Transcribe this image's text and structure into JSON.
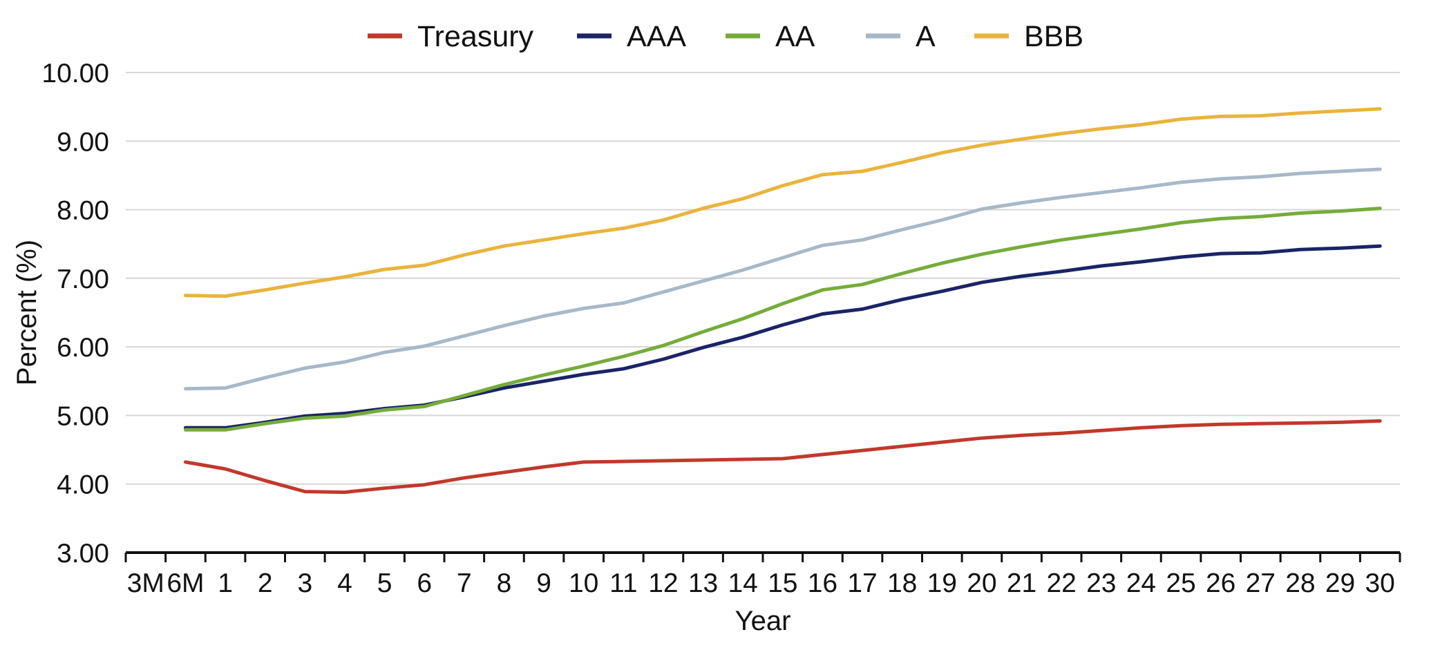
{
  "chart_data": {
    "type": "line",
    "xlabel": "Year",
    "ylabel": "Percent (%)",
    "ylim": [
      3,
      10
    ],
    "yticks": [
      "10.00",
      "9.00",
      "8.00",
      "7.00",
      "6.00",
      "5.00",
      "4.00",
      "3.00"
    ],
    "ytick_values": [
      10,
      9,
      8,
      7,
      6,
      5,
      4,
      3
    ],
    "categories": [
      "3M",
      "6M",
      "1",
      "2",
      "3",
      "4",
      "5",
      "6",
      "7",
      "8",
      "9",
      "10",
      "11",
      "12",
      "13",
      "14",
      "15",
      "16",
      "17",
      "18",
      "19",
      "20",
      "21",
      "22",
      "23",
      "24",
      "25",
      "26",
      "27",
      "28",
      "29",
      "30"
    ],
    "grid": true,
    "legend": "top",
    "series": [
      {
        "name": "Treasury",
        "color": "#c0392b",
        "values": [
          null,
          4.32,
          4.22,
          4.05,
          3.89,
          3.88,
          3.94,
          3.99,
          4.09,
          4.17,
          4.25,
          4.32,
          4.33,
          4.34,
          4.35,
          4.36,
          4.37,
          4.43,
          4.49,
          4.55,
          4.61,
          4.67,
          4.71,
          4.74,
          4.78,
          4.82,
          4.85,
          4.87,
          4.88,
          4.89,
          4.9,
          4.92
        ]
      },
      {
        "name": "AAA",
        "color": "#1a2466",
        "values": [
          null,
          4.82,
          4.82,
          4.9,
          4.99,
          5.03,
          5.1,
          5.15,
          5.27,
          5.4,
          5.5,
          5.6,
          5.68,
          5.82,
          5.99,
          6.14,
          6.32,
          6.48,
          6.55,
          6.69,
          6.81,
          6.94,
          7.03,
          7.1,
          7.18,
          7.24,
          7.31,
          7.36,
          7.37,
          7.42,
          7.44,
          7.47
        ]
      },
      {
        "name": "AA",
        "color": "#76ac3a",
        "values": [
          null,
          4.79,
          4.79,
          4.88,
          4.96,
          4.99,
          5.08,
          5.13,
          5.29,
          5.45,
          5.59,
          5.72,
          5.86,
          6.02,
          6.22,
          6.41,
          6.63,
          6.83,
          6.91,
          7.07,
          7.22,
          7.35,
          7.46,
          7.56,
          7.64,
          7.72,
          7.81,
          7.87,
          7.9,
          7.95,
          7.98,
          8.02
        ]
      },
      {
        "name": "A",
        "color": "#a7b9c8",
        "values": [
          null,
          5.39,
          5.4,
          5.55,
          5.69,
          5.78,
          5.92,
          6.01,
          6.16,
          6.31,
          6.45,
          6.56,
          6.64,
          6.8,
          6.96,
          7.12,
          7.3,
          7.48,
          7.56,
          7.71,
          7.85,
          8.01,
          8.1,
          8.18,
          8.25,
          8.32,
          8.4,
          8.45,
          8.48,
          8.53,
          8.56,
          8.59
        ]
      },
      {
        "name": "BBB",
        "color": "#e9b43d",
        "values": [
          null,
          6.75,
          6.74,
          6.83,
          6.93,
          7.02,
          7.13,
          7.19,
          7.34,
          7.47,
          7.56,
          7.65,
          7.73,
          7.85,
          8.02,
          8.16,
          8.35,
          8.51,
          8.56,
          8.69,
          8.83,
          8.94,
          9.03,
          9.11,
          9.18,
          9.24,
          9.32,
          9.36,
          9.37,
          9.41,
          9.44,
          9.47
        ]
      }
    ]
  }
}
